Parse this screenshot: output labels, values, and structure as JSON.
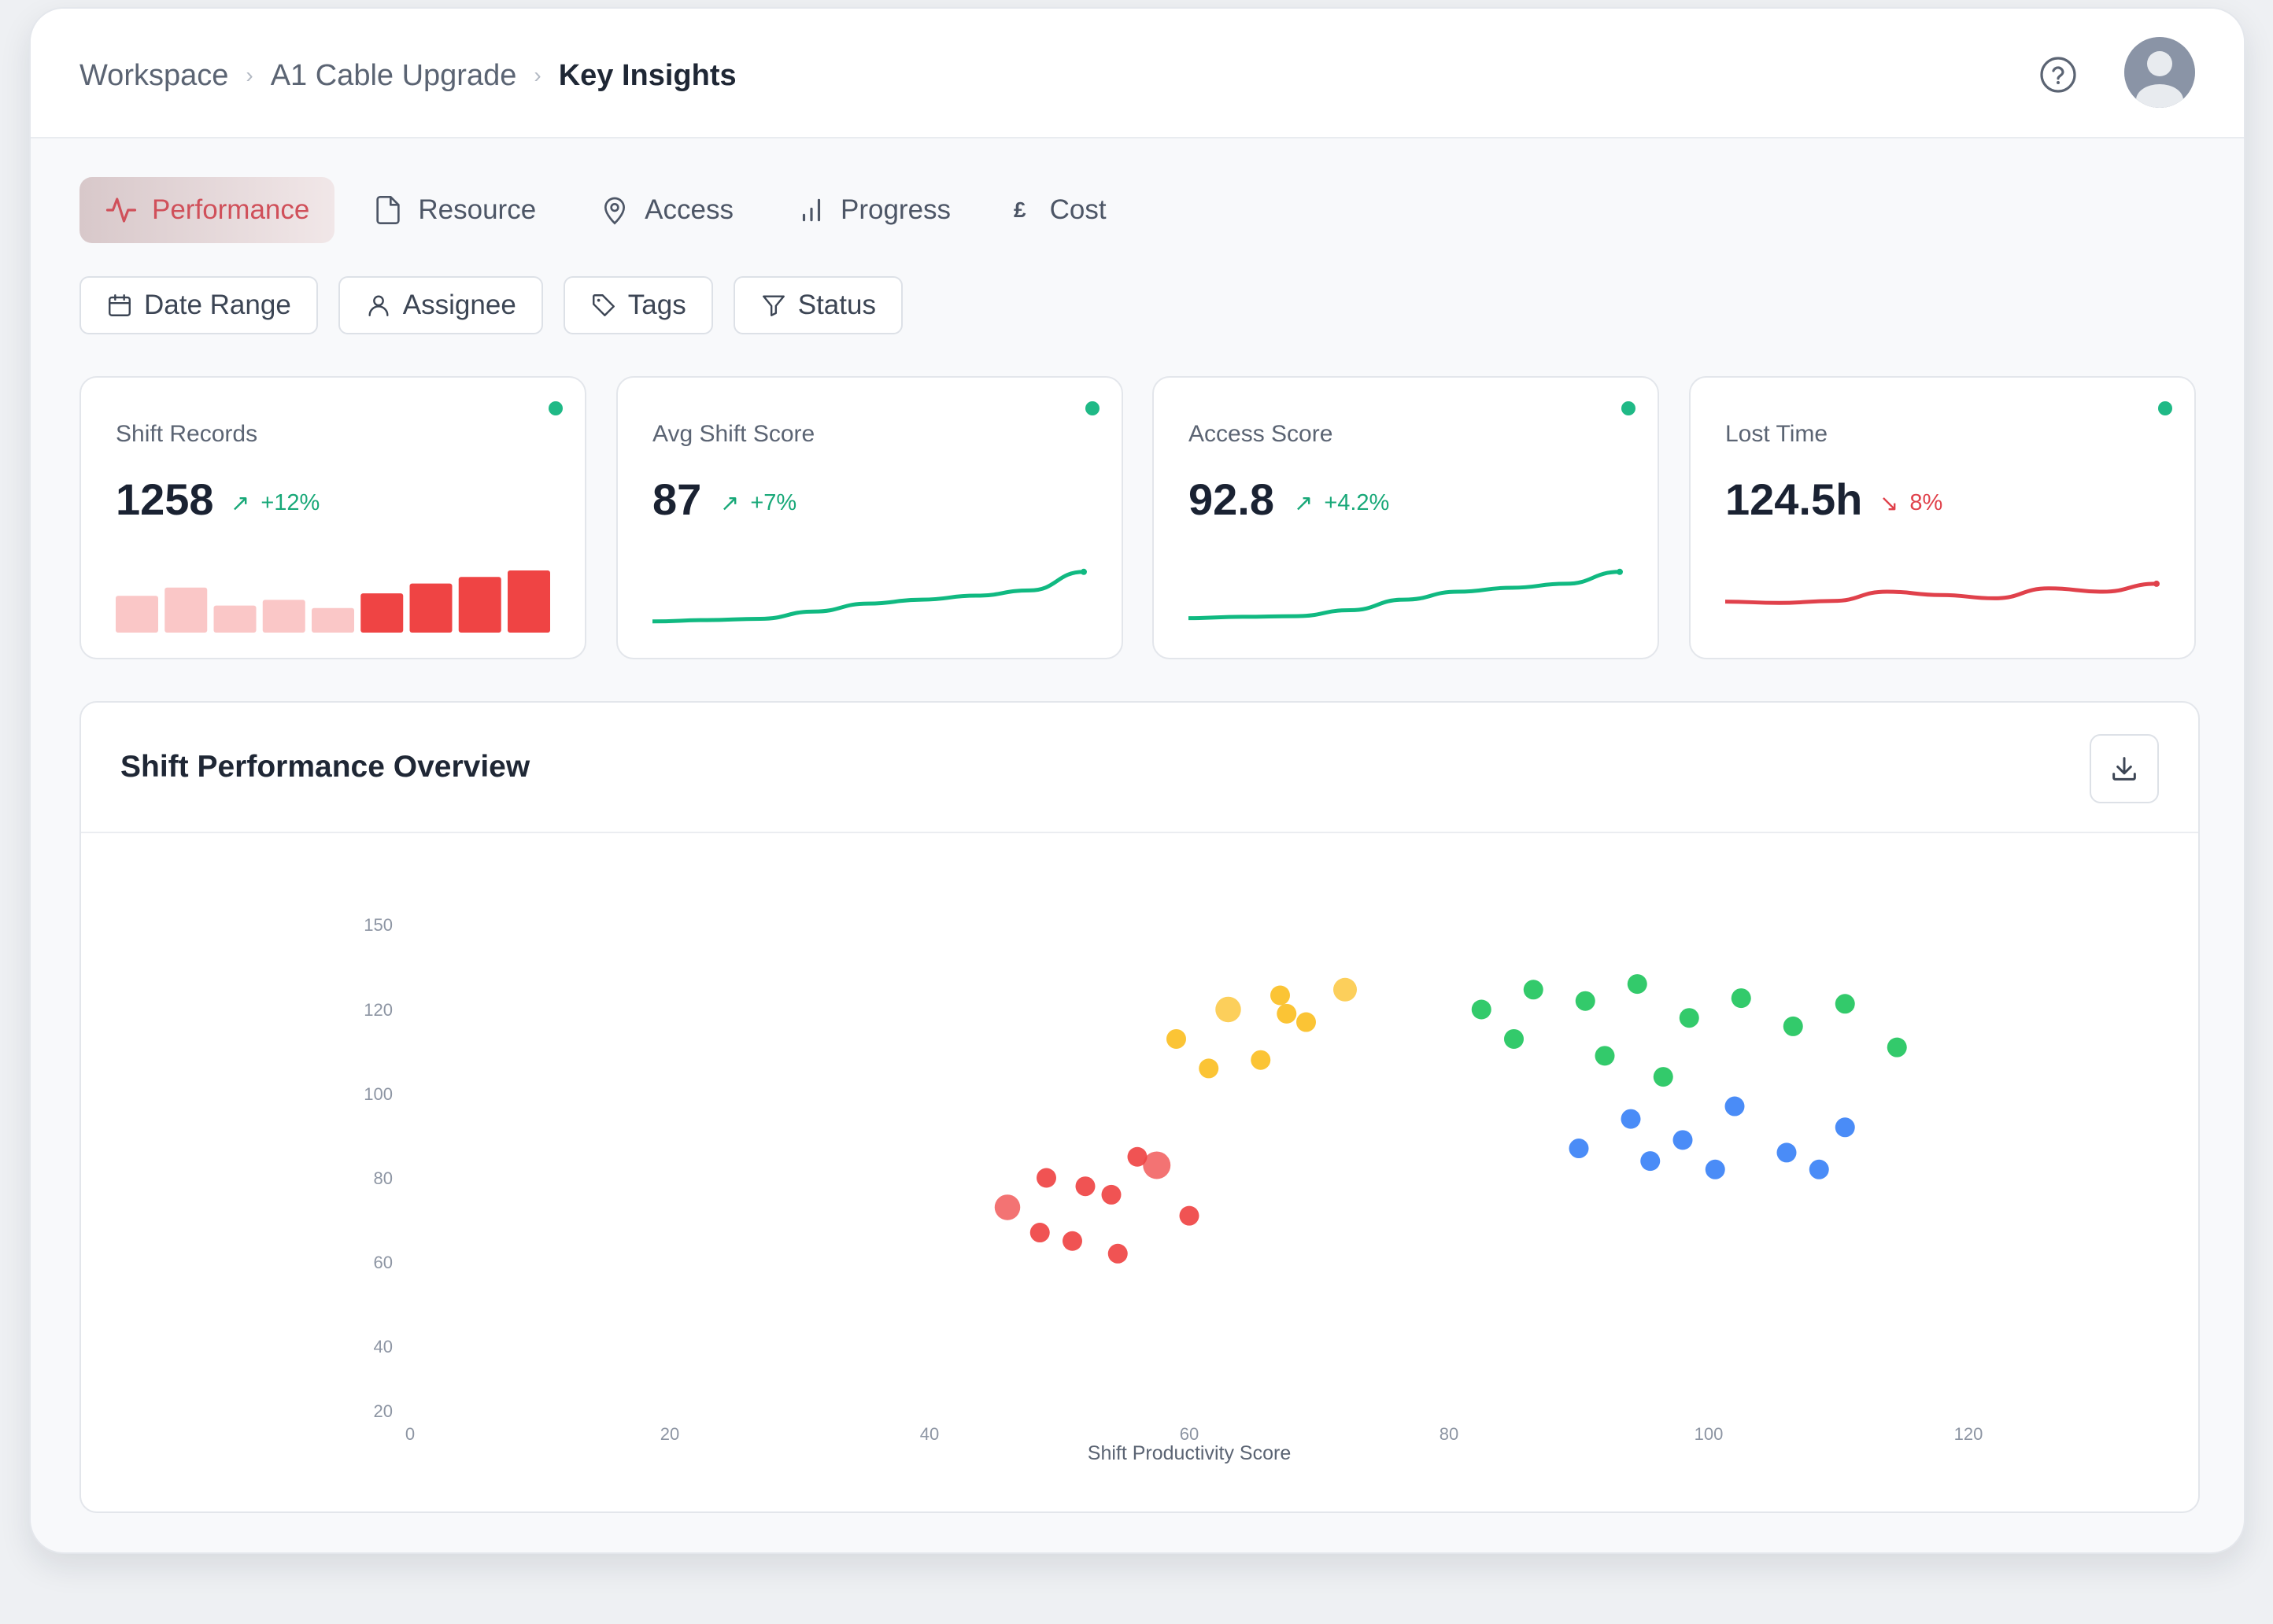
{
  "breadcrumb": {
    "root": "Workspace",
    "project": "A1 Cable Upgrade",
    "current": "Key Insights"
  },
  "header": {
    "help_icon": "help-circle-icon",
    "avatar_icon": "user-avatar-icon"
  },
  "tabs": [
    {
      "label": "Performance",
      "icon": "activity-icon",
      "active": true
    },
    {
      "label": "Resource",
      "icon": "file-icon",
      "active": false
    },
    {
      "label": "Access",
      "icon": "map-pin-icon",
      "active": false
    },
    {
      "label": "Progress",
      "icon": "bar-chart-icon",
      "active": false
    },
    {
      "label": "Cost",
      "icon": "pound-icon",
      "active": false
    }
  ],
  "filters": [
    {
      "label": "Date Range",
      "icon": "calendar-icon"
    },
    {
      "label": "Assignee",
      "icon": "user-icon"
    },
    {
      "label": "Tags",
      "icon": "tag-icon"
    },
    {
      "label": "Status",
      "icon": "filter-icon"
    }
  ],
  "kpis": [
    {
      "title": "Shift Records",
      "value": "1258",
      "delta": "+12%",
      "trend": "up",
      "spark_type": "bar",
      "spark": [
        0.45,
        0.55,
        0.33,
        0.4,
        0.3,
        0.48,
        0.6,
        0.68,
        0.76
      ],
      "color": "#ef4444"
    },
    {
      "title": "Avg Shift Score",
      "value": "87",
      "delta": "+7%",
      "trend": "up",
      "spark_type": "line",
      "spark": [
        0.05,
        0.07,
        0.09,
        0.2,
        0.32,
        0.38,
        0.44,
        0.52,
        0.8
      ],
      "color": "#10b981"
    },
    {
      "title": "Access Score",
      "value": "92.8",
      "delta": "+4.2%",
      "trend": "up",
      "spark_type": "line",
      "spark": [
        0.1,
        0.12,
        0.13,
        0.22,
        0.38,
        0.5,
        0.56,
        0.62,
        0.8
      ],
      "color": "#10b981"
    },
    {
      "title": "Lost Time",
      "value": "124.5h",
      "delta": "8%",
      "trend": "down",
      "spark_type": "line",
      "spark": [
        0.35,
        0.33,
        0.36,
        0.5,
        0.45,
        0.4,
        0.55,
        0.5,
        0.62
      ],
      "color": "#e0414b"
    }
  ],
  "panel": {
    "title": "Shift Performance Overview",
    "download_icon": "download-icon"
  },
  "chart_data": {
    "type": "scatter",
    "xlabel": "Shift Productivity Score",
    "ylabel": "",
    "xticks": [
      0,
      20,
      40,
      60,
      80,
      100,
      120
    ],
    "yticks": [
      20,
      40,
      60,
      80,
      100,
      120,
      150
    ],
    "series": [
      {
        "color": "#ef4444",
        "points": [
          [
            46,
            73,
            1.3
          ],
          [
            48.5,
            67,
            1
          ],
          [
            49,
            80,
            1
          ],
          [
            51,
            65,
            1
          ],
          [
            52,
            78,
            1
          ],
          [
            54,
            76,
            1
          ],
          [
            54.5,
            62,
            1
          ],
          [
            56,
            85,
            1
          ],
          [
            57.5,
            83,
            1.4
          ],
          [
            60,
            71,
            1
          ]
        ]
      },
      {
        "color": "#fbbf24",
        "points": [
          [
            59,
            113,
            1
          ],
          [
            61.5,
            106,
            1
          ],
          [
            63,
            120,
            1.3
          ],
          [
            65.5,
            108,
            1
          ],
          [
            67,
            125,
            1
          ],
          [
            67.5,
            119,
            1
          ],
          [
            69,
            117,
            1
          ],
          [
            72,
            127,
            1.2
          ]
        ]
      },
      {
        "color": "#22c55e",
        "points": [
          [
            82.5,
            120,
            1
          ],
          [
            85,
            113,
            1
          ],
          [
            86.5,
            127,
            1
          ],
          [
            90.5,
            123,
            1
          ],
          [
            92,
            109,
            1
          ],
          [
            94.5,
            129,
            1
          ],
          [
            96.5,
            104,
            1
          ],
          [
            98.5,
            118,
            1
          ],
          [
            102.5,
            124,
            1
          ],
          [
            106.5,
            116,
            1
          ],
          [
            110.5,
            122,
            1
          ],
          [
            114.5,
            111,
            1
          ]
        ]
      },
      {
        "color": "#3b82f6",
        "points": [
          [
            90,
            87,
            1
          ],
          [
            94,
            94,
            1
          ],
          [
            95.5,
            84,
            1
          ],
          [
            98,
            89,
            1
          ],
          [
            100.5,
            82,
            1
          ],
          [
            102,
            97,
            1
          ],
          [
            106,
            86,
            1
          ],
          [
            108.5,
            82,
            1
          ],
          [
            110.5,
            92,
            1
          ]
        ]
      }
    ]
  }
}
